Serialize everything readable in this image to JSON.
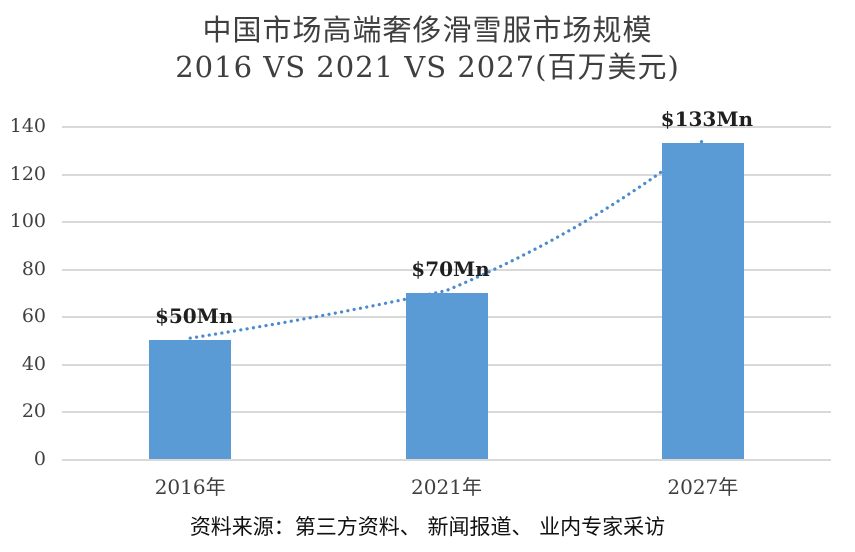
{
  "title": {
    "line1": "中国市场高端奢侈滑雪服市场规模",
    "line2": "2016 VS 2021 VS 2027(百万美元)"
  },
  "source_note": "资料来源：第三方资料、 新闻报道、 业内专家采访",
  "colors": {
    "bar": "#5B9BD5",
    "trend_line": "#4A8ACE",
    "gridline": "#D9D9D9",
    "title_text": "#3F3F3F",
    "data_label_text": "#1F1F1F"
  },
  "chart_data": {
    "type": "bar",
    "title": "中国市场高端奢侈滑雪服市场规模 2016 VS 2021 VS 2027(百万美元)",
    "categories": [
      "2016年",
      "2021年",
      "2027年"
    ],
    "values": [
      50,
      70,
      133
    ],
    "data_labels": [
      "$50Mn",
      "$70Mn",
      "$133Mn"
    ],
    "y_ticks": [
      0,
      20,
      40,
      60,
      80,
      100,
      120,
      140
    ],
    "ylim": [
      0,
      140
    ],
    "xlabel": "",
    "ylabel": "",
    "grid": true,
    "legend": false,
    "trendline": {
      "style": "dotted",
      "shape": "exponential-through-points",
      "points": [
        50,
        70,
        133
      ]
    }
  }
}
